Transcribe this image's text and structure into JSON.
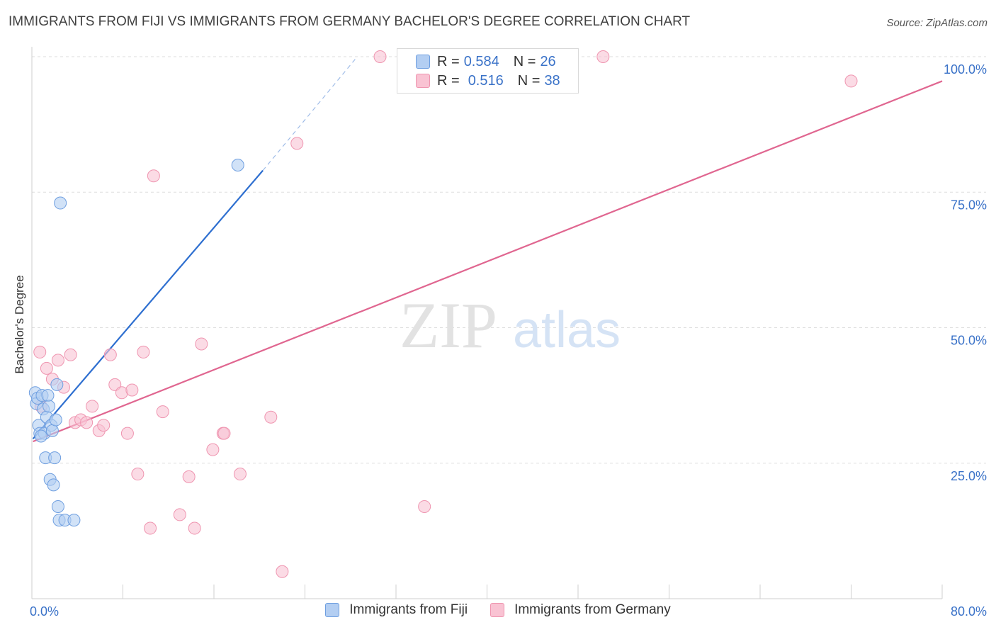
{
  "title": "IMMIGRANTS FROM FIJI VS IMMIGRANTS FROM GERMANY BACHELOR'S DEGREE CORRELATION CHART",
  "source": "Source: ZipAtlas.com",
  "watermark": {
    "zip": "ZIP",
    "atlas": "atlas"
  },
  "legend": {
    "fiji": {
      "r_label": "R =",
      "r_value": "0.584",
      "n_label": "N =",
      "n_value": "26"
    },
    "germany": {
      "r_label": "R =",
      "r_value": "0.516",
      "n_label": "N =",
      "n_value": "38"
    }
  },
  "colors": {
    "fiji_fill": "#b3cef2",
    "fiji_stroke": "#6f9fe0",
    "fiji_line": "#2e6fd0",
    "germany_fill": "#f9c3d3",
    "germany_stroke": "#ef95b0",
    "germany_line": "#e06690",
    "axis_label": "#3a72c8",
    "grid": "#dddddd"
  },
  "chart_data": {
    "type": "scatter",
    "title": "IMMIGRANTS FROM FIJI VS IMMIGRANTS FROM GERMANY BACHELOR'S DEGREE CORRELATION CHART",
    "xlabel": "",
    "ylabel": "Bachelor's Degree",
    "xlim": [
      0,
      80
    ],
    "ylim": [
      0,
      105
    ],
    "x_tick_labels": [
      "0.0%",
      "80.0%"
    ],
    "y_ticks": [
      25,
      50,
      75,
      100
    ],
    "y_tick_labels": [
      "25.0%",
      "50.0%",
      "75.0%",
      "100.0%"
    ],
    "legend_position": "bottom",
    "series": [
      {
        "name": "Immigrants from Fiji",
        "points": [
          [
            0.3,
            38.0
          ],
          [
            0.4,
            36.0
          ],
          [
            0.5,
            37.0
          ],
          [
            0.6,
            32.0
          ],
          [
            0.7,
            30.5
          ],
          [
            0.9,
            37.5
          ],
          [
            1.0,
            35.0
          ],
          [
            1.1,
            30.5
          ],
          [
            1.2,
            26.0
          ],
          [
            1.3,
            33.5
          ],
          [
            1.4,
            37.5
          ],
          [
            1.5,
            35.5
          ],
          [
            1.6,
            22.0
          ],
          [
            1.7,
            32.0
          ],
          [
            1.8,
            31.0
          ],
          [
            1.9,
            21.0
          ],
          [
            2.0,
            26.0
          ],
          [
            2.1,
            33.0
          ],
          [
            2.2,
            39.5
          ],
          [
            2.3,
            17.0
          ],
          [
            2.4,
            14.5
          ],
          [
            2.5,
            73.0
          ],
          [
            2.9,
            14.5
          ],
          [
            3.7,
            14.5
          ],
          [
            18.1,
            80.0
          ],
          [
            0.8,
            30.0
          ]
        ],
        "trend": {
          "x0": 0.1,
          "y0": 29.5,
          "x1": 20.3,
          "y1": 79.0,
          "dash_x1": 28.6,
          "dash_y1": 100.0
        }
      },
      {
        "name": "Immigrants from Germany",
        "points": [
          [
            0.7,
            45.5
          ],
          [
            0.8,
            35.5
          ],
          [
            1.3,
            42.5
          ],
          [
            1.8,
            40.5
          ],
          [
            2.3,
            44.0
          ],
          [
            2.8,
            39.0
          ],
          [
            3.4,
            45.0
          ],
          [
            3.8,
            32.5
          ],
          [
            4.3,
            33.0
          ],
          [
            4.8,
            32.5
          ],
          [
            5.3,
            35.5
          ],
          [
            5.9,
            31.0
          ],
          [
            6.3,
            32.0
          ],
          [
            6.9,
            45.0
          ],
          [
            7.3,
            39.5
          ],
          [
            7.9,
            38.0
          ],
          [
            8.4,
            30.5
          ],
          [
            8.8,
            38.5
          ],
          [
            9.3,
            23.0
          ],
          [
            9.8,
            45.5
          ],
          [
            10.4,
            13.0
          ],
          [
            10.7,
            78.0
          ],
          [
            11.5,
            34.5
          ],
          [
            13.0,
            15.5
          ],
          [
            13.8,
            22.5
          ],
          [
            14.3,
            13.0
          ],
          [
            14.9,
            47.0
          ],
          [
            15.9,
            27.5
          ],
          [
            16.8,
            30.5
          ],
          [
            16.9,
            30.5
          ],
          [
            18.3,
            23.0
          ],
          [
            21.0,
            33.5
          ],
          [
            22.0,
            5.0
          ],
          [
            23.3,
            84.0
          ],
          [
            30.6,
            100.0
          ],
          [
            34.5,
            17.0
          ],
          [
            50.2,
            100.0
          ],
          [
            72.0,
            95.5
          ]
        ],
        "trend": {
          "x0": 0.1,
          "y0": 29.0,
          "x1": 80.0,
          "y1": 95.5
        }
      }
    ]
  }
}
